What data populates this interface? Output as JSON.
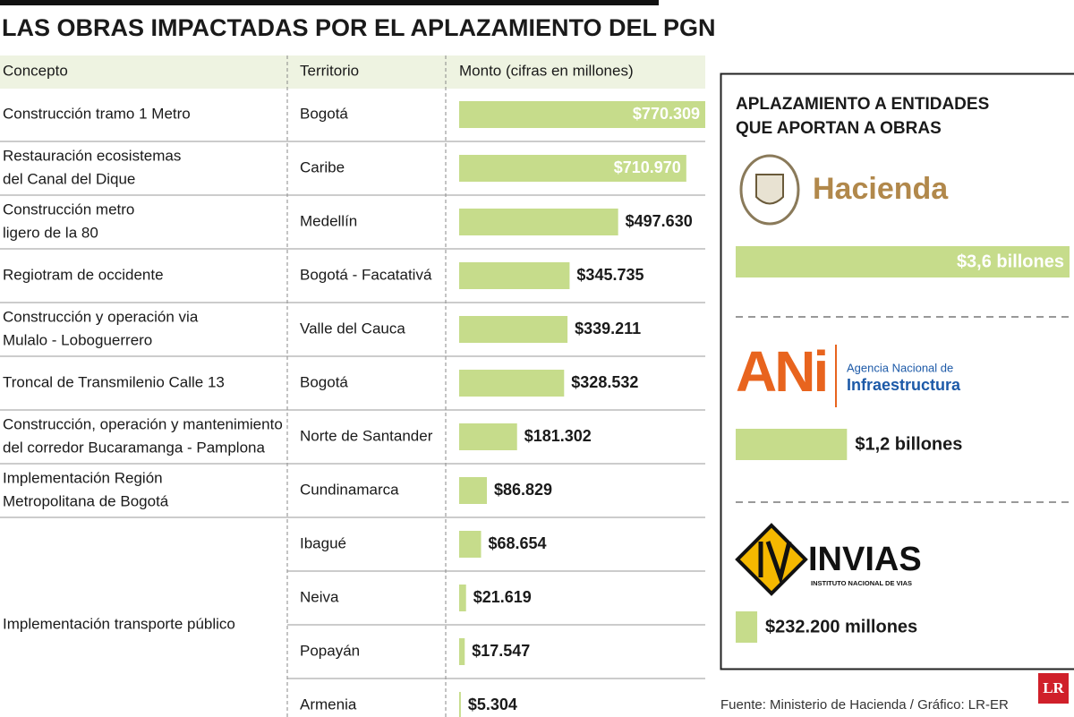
{
  "title": "LAS OBRAS IMPACTADAS POR EL APLAZAMIENTO DEL PGN",
  "table": {
    "headers": [
      "Concepto",
      "Territorio",
      "Monto (cifras en millones)"
    ],
    "groups": [
      {
        "concept": [
          "Construcción tramo 1 Metro"
        ],
        "items": [
          {
            "territory": "Bogotá",
            "value": 770309,
            "value_label": "$770.309"
          }
        ]
      },
      {
        "concept": [
          "Restauración ecosistemas",
          "del Canal del Dique"
        ],
        "items": [
          {
            "territory": "Caribe",
            "value": 710970,
            "value_label": "$710.970"
          }
        ]
      },
      {
        "concept": [
          "Construcción metro",
          "ligero de la 80"
        ],
        "items": [
          {
            "territory": "Medellín",
            "value": 497630,
            "value_label": "$497.630"
          }
        ]
      },
      {
        "concept": [
          "Regiotram de occidente"
        ],
        "items": [
          {
            "territory": "Bogotá - Facatativá",
            "value": 345735,
            "value_label": "$345.735"
          }
        ]
      },
      {
        "concept": [
          "Construcción y operación via",
          "Mulalo - Loboguerrero"
        ],
        "items": [
          {
            "territory": "Valle del Cauca",
            "value": 339211,
            "value_label": "$339.211"
          }
        ]
      },
      {
        "concept": [
          "Troncal de Transmilenio Calle 13"
        ],
        "items": [
          {
            "territory": "Bogotá",
            "value": 328532,
            "value_label": "$328.532"
          }
        ]
      },
      {
        "concept": [
          "Construcción, operación y mantenimiento",
          "del corredor Bucaramanga - Pamplona"
        ],
        "items": [
          {
            "territory": "Norte de Santander",
            "value": 181302,
            "value_label": "$181.302"
          }
        ]
      },
      {
        "concept": [
          "Implementación Región",
          "Metropolitana de Bogotá"
        ],
        "items": [
          {
            "territory": "Cundinamarca",
            "value": 86829,
            "value_label": "$86.829"
          }
        ]
      },
      {
        "concept": [
          "Implementación transporte público"
        ],
        "items": [
          {
            "territory": "Ibagué",
            "value": 68654,
            "value_label": "$68.654"
          },
          {
            "territory": "Neiva",
            "value": 21619,
            "value_label": "$21.619"
          },
          {
            "territory": "Popayán",
            "value": 17547,
            "value_label": "$17.547"
          },
          {
            "territory": "Armenia",
            "value": 5304,
            "value_label": "$5.304"
          }
        ]
      }
    ]
  },
  "panel": {
    "title": [
      "APLAZAMIENTO A ENTIDADES",
      "QUE APORTAN A OBRAS"
    ],
    "entities": [
      {
        "logo_text": [
          "Hacienda"
        ],
        "value": 3600000,
        "value_label": "$3,6 billones"
      },
      {
        "logo_text": [
          "ANi",
          "Agencia Nacional de",
          "Infraestructura"
        ],
        "value": 1200000,
        "value_label": "$1,2 billones"
      },
      {
        "logo_text": [
          "INVIAS",
          "INSTITUTO NACIONAL DE VIAS"
        ],
        "value": 232200,
        "value_label": "$232.200 millones"
      }
    ]
  },
  "source": "Fuente: Ministerio de Hacienda / Gráfico: LR-ER",
  "brand": "LR"
}
